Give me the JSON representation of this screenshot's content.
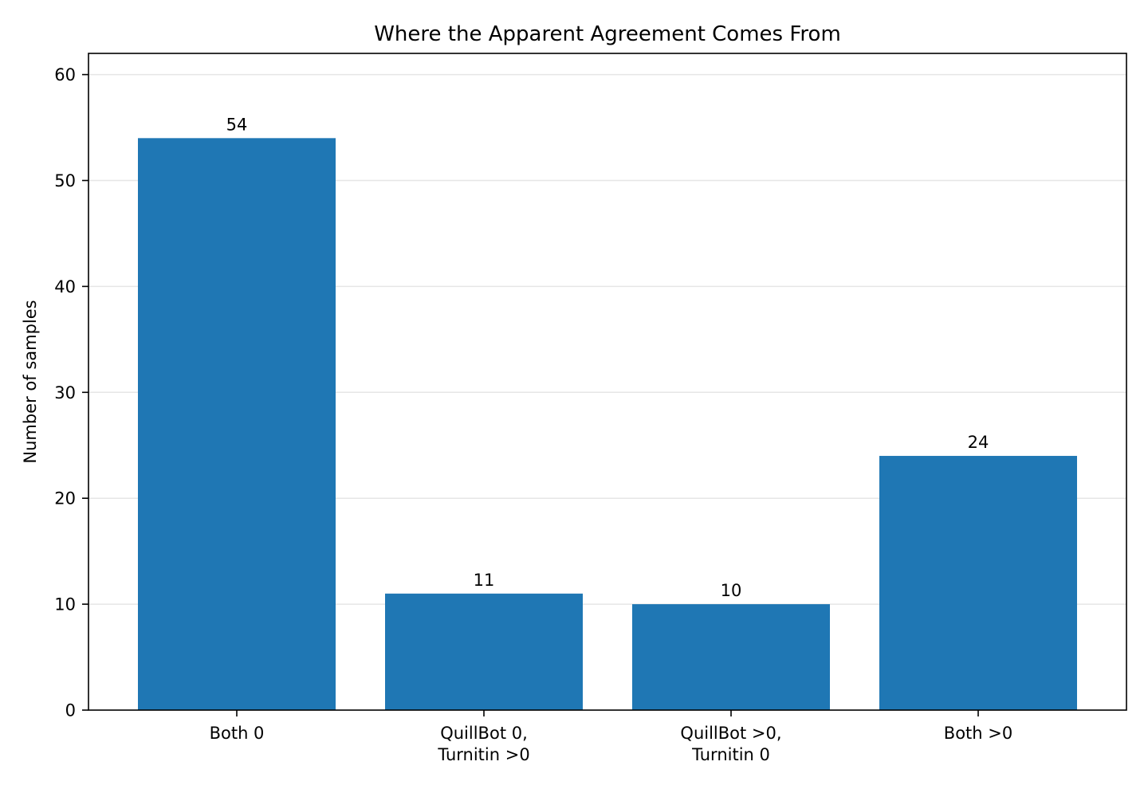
{
  "chart_data": {
    "type": "bar",
    "title": "Where the Apparent Agreement Comes From",
    "ylabel": "Number of samples",
    "xlabel": "",
    "categories": [
      [
        "Both 0"
      ],
      [
        "QuillBot 0,",
        "Turnitin >0"
      ],
      [
        "QuillBot >0,",
        "Turnitin 0"
      ],
      [
        "Both >0"
      ]
    ],
    "values": [
      54,
      11,
      10,
      24
    ],
    "ylim": [
      0,
      62
    ],
    "yticks": [
      0,
      10,
      20,
      30,
      40,
      50,
      60
    ],
    "grid": "y",
    "bar_color": "#1f77b4",
    "show_data_labels": true
  }
}
